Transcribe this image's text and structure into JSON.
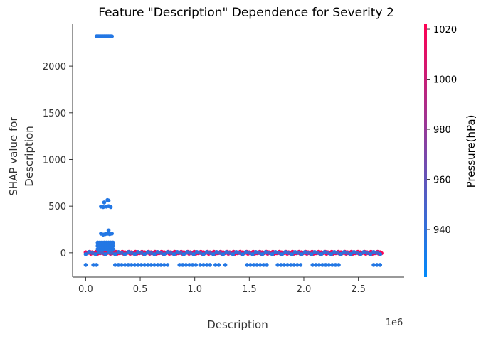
{
  "chart_data": {
    "type": "scatter",
    "title": "Feature \"Description\" Dependence for Severity 2",
    "xlabel": "Description",
    "x_offset_text": "1e6",
    "ylabel_lines": [
      "SHAP value for",
      "Description"
    ],
    "xlim": [
      -0.12,
      2.92
    ],
    "ylim": [
      -260,
      2450
    ],
    "x_ticks": [
      0.0,
      0.5,
      1.0,
      1.5,
      2.0,
      2.5
    ],
    "x_tick_labels": [
      "0.0",
      "0.5",
      "1.0",
      "1.5",
      "2.0",
      "2.5"
    ],
    "y_ticks": [
      0,
      500,
      1000,
      1500,
      2000
    ],
    "y_tick_labels": [
      "0",
      "500",
      "1000",
      "1500",
      "2000"
    ],
    "grid": false,
    "colorbar": {
      "label": "Pressure(hPa)",
      "range": [
        921,
        1022
      ],
      "ticks": [
        940,
        960,
        980,
        1000,
        1020
      ],
      "tick_labels": [
        "940",
        "960",
        "980",
        "1000",
        "1020"
      ],
      "color_low": "#008afb",
      "color_high": "#ff0052"
    },
    "series": [
      {
        "points": [
          [
            0.1,
            2320,
            935
          ],
          [
            0.11,
            2320,
            935
          ],
          [
            0.12,
            2320,
            935
          ],
          [
            0.13,
            2320,
            935
          ],
          [
            0.14,
            2320,
            935
          ],
          [
            0.15,
            2320,
            935
          ],
          [
            0.16,
            2320,
            935
          ],
          [
            0.17,
            2320,
            935
          ],
          [
            0.18,
            2320,
            935
          ],
          [
            0.19,
            2320,
            935
          ],
          [
            0.2,
            2320,
            935
          ],
          [
            0.21,
            2320,
            935
          ],
          [
            0.22,
            2320,
            935
          ],
          [
            0.23,
            2320,
            935
          ],
          [
            0.24,
            2320,
            935
          ],
          [
            0.2,
            565,
            935
          ],
          [
            0.21,
            560,
            935
          ],
          [
            0.17,
            540,
            935
          ],
          [
            0.14,
            495,
            935
          ],
          [
            0.16,
            490,
            935
          ],
          [
            0.19,
            495,
            935
          ],
          [
            0.21,
            500,
            935
          ],
          [
            0.23,
            490,
            935
          ],
          [
            0.21,
            240,
            935
          ],
          [
            0.14,
            205,
            935
          ],
          [
            0.16,
            195,
            935
          ],
          [
            0.18,
            200,
            935
          ],
          [
            0.2,
            205,
            935
          ],
          [
            0.22,
            200,
            935
          ],
          [
            0.24,
            205,
            935
          ],
          [
            0.11,
            110,
            935
          ],
          [
            0.13,
            110,
            935
          ],
          [
            0.15,
            110,
            935
          ],
          [
            0.17,
            110,
            935
          ],
          [
            0.19,
            110,
            935
          ],
          [
            0.21,
            110,
            935
          ],
          [
            0.23,
            110,
            935
          ],
          [
            0.25,
            110,
            935
          ],
          [
            0.11,
            75,
            935
          ],
          [
            0.13,
            75,
            935
          ],
          [
            0.15,
            75,
            935
          ],
          [
            0.17,
            75,
            935
          ],
          [
            0.19,
            75,
            935
          ],
          [
            0.21,
            75,
            935
          ],
          [
            0.23,
            75,
            935
          ],
          [
            0.25,
            75,
            935
          ],
          [
            0.11,
            40,
            935
          ],
          [
            0.13,
            40,
            935
          ],
          [
            0.15,
            40,
            935
          ],
          [
            0.17,
            40,
            935
          ],
          [
            0.19,
            40,
            935
          ],
          [
            0.21,
            40,
            935
          ],
          [
            0.23,
            40,
            935
          ],
          [
            0.25,
            40,
            935
          ],
          [
            0.0,
            -130,
            935
          ],
          [
            0.07,
            -130,
            935
          ],
          [
            0.1,
            -130,
            935
          ],
          [
            0.27,
            -130,
            935
          ],
          [
            0.3,
            -130,
            935
          ],
          [
            0.33,
            -130,
            935
          ],
          [
            0.36,
            -130,
            935
          ],
          [
            0.39,
            -130,
            935
          ],
          [
            0.42,
            -130,
            935
          ],
          [
            0.45,
            -130,
            935
          ],
          [
            0.48,
            -130,
            935
          ],
          [
            0.51,
            -130,
            935
          ],
          [
            0.54,
            -130,
            935
          ],
          [
            0.57,
            -130,
            935
          ],
          [
            0.6,
            -130,
            935
          ],
          [
            0.63,
            -130,
            935
          ],
          [
            0.66,
            -130,
            935
          ],
          [
            0.69,
            -130,
            935
          ],
          [
            0.72,
            -130,
            935
          ],
          [
            0.75,
            -130,
            935
          ],
          [
            0.86,
            -130,
            935
          ],
          [
            0.89,
            -130,
            935
          ],
          [
            0.92,
            -130,
            935
          ],
          [
            0.95,
            -130,
            935
          ],
          [
            0.98,
            -130,
            935
          ],
          [
            1.01,
            -130,
            935
          ],
          [
            1.05,
            -130,
            935
          ],
          [
            1.08,
            -130,
            935
          ],
          [
            1.11,
            -130,
            935
          ],
          [
            1.14,
            -130,
            935
          ],
          [
            1.19,
            -130,
            935
          ],
          [
            1.22,
            -130,
            935
          ],
          [
            1.28,
            -130,
            935
          ],
          [
            1.48,
            -130,
            935
          ],
          [
            1.51,
            -130,
            935
          ],
          [
            1.54,
            -130,
            935
          ],
          [
            1.57,
            -130,
            935
          ],
          [
            1.6,
            -130,
            935
          ],
          [
            1.63,
            -130,
            935
          ],
          [
            1.66,
            -130,
            935
          ],
          [
            1.76,
            -130,
            935
          ],
          [
            1.79,
            -130,
            935
          ],
          [
            1.82,
            -130,
            935
          ],
          [
            1.85,
            -130,
            935
          ],
          [
            1.88,
            -130,
            935
          ],
          [
            1.91,
            -130,
            935
          ],
          [
            1.94,
            -130,
            935
          ],
          [
            1.97,
            -130,
            935
          ],
          [
            2.08,
            -130,
            935
          ],
          [
            2.11,
            -130,
            935
          ],
          [
            2.14,
            -130,
            935
          ],
          [
            2.17,
            -130,
            935
          ],
          [
            2.2,
            -130,
            935
          ],
          [
            2.23,
            -130,
            935
          ],
          [
            2.26,
            -130,
            935
          ],
          [
            2.29,
            -130,
            935
          ],
          [
            2.32,
            -130,
            935
          ],
          [
            2.64,
            -130,
            935
          ],
          [
            2.67,
            -130,
            935
          ],
          [
            2.7,
            -130,
            935
          ]
        ],
        "bands": [
          {
            "x_range": [
              0.0,
              2.72
            ],
            "step": 0.012,
            "y_values": [
              5,
              -5,
              0,
              10,
              -10
            ],
            "pressure_pattern": [
              1018,
              1005,
              1015,
              1010,
              1020,
              1008
            ],
            "note": "dense band near zero"
          },
          {
            "x_range": [
              0.0,
              2.72
            ],
            "step": 0.03,
            "y_values": [
              -15,
              8,
              -2
            ],
            "pressure_pattern": [
              935,
              940,
              950
            ],
            "note": "blue points mixed in the band"
          }
        ]
      }
    ]
  }
}
